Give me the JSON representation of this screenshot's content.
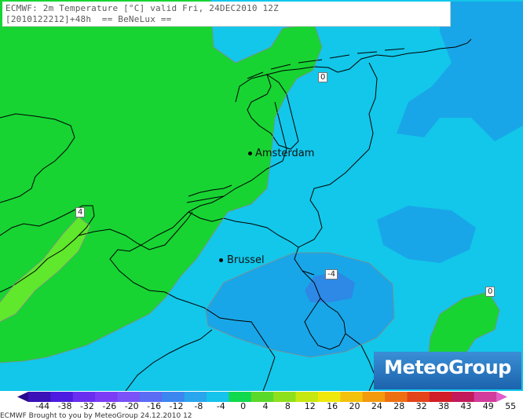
{
  "title": {
    "line1": "ECMWF: 2m Temperature [°C] valid Fri, 24DEC2010 12Z",
    "line2": "[2010122212]+48h  == BeNeLux =="
  },
  "cities": [
    {
      "name": "Amsterdam"
    },
    {
      "name": "Brussel"
    }
  ],
  "contour_labels": [
    "0",
    "4",
    "-4",
    "0"
  ],
  "logo": {
    "text": "MeteoGroup"
  },
  "colorbar": {
    "ticks": [
      "-44",
      "-38",
      "-32",
      "-26",
      "-20",
      "-16",
      "-12",
      "-8",
      "-4",
      "0",
      "4",
      "8",
      "12",
      "16",
      "20",
      "24",
      "28",
      "32",
      "38",
      "43",
      "49",
      "55"
    ],
    "colors": [
      "#2a0a8c",
      "#3a12b8",
      "#4d1ce0",
      "#6a2ef0",
      "#7c3cf5",
      "#7a52f8",
      "#5b6cf5",
      "#3c86f0",
      "#2aa6ee",
      "#16c3ea",
      "#11d94e",
      "#5bd92a",
      "#8fe01c",
      "#c6e810",
      "#f0e80c",
      "#f4c20c",
      "#f39a0f",
      "#ee6f12",
      "#e3441a",
      "#d11e27",
      "#c21a5a",
      "#d23c9c",
      "#e25ec8"
    ]
  },
  "bottom_note": "ECMWF Brought to you by MeteoGroup 24.12.2010 12"
}
